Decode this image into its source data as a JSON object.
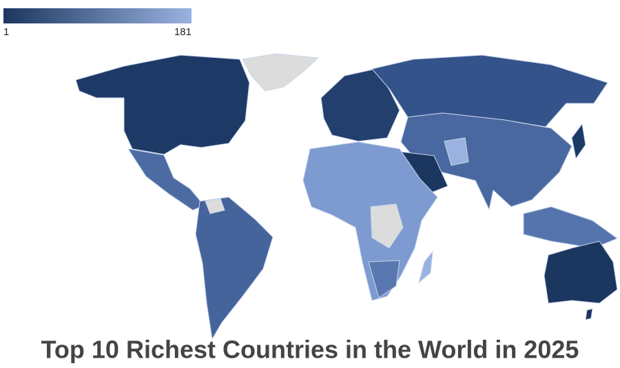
{
  "legend": {
    "min": "1",
    "max": "181"
  },
  "title": "Top 10 Richest Countries in the World in 2025"
}
